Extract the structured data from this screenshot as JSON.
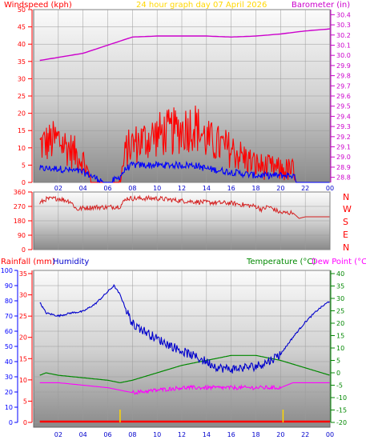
{
  "header": {
    "left_title": "Windspeed (kph)",
    "center_title": "24 hour graph day   07 April 2026",
    "right_title": "Barometer (in)"
  },
  "bottom_header": {
    "rainfall_label": "Rainfall (mm)",
    "humidity_label": "Humidity",
    "temperature_label": "Temperature (°C)",
    "dewpoint_label": "Dew Point (°C)"
  },
  "colors": {
    "windspeed": "#ff0000",
    "wind_avg": "#0000ff",
    "barometer": "#cc00cc",
    "wind_direction": "#d42020",
    "humidity": "#0000cc",
    "temperature": "#008800",
    "dewpoint": "#ff00ff",
    "rainfall": "#ff0000",
    "marker": "#ffd700",
    "axis_red": "#ff0000",
    "axis_blue": "#0000ff",
    "axis_magenta": "#cc00cc",
    "axis_green": "#008800"
  },
  "chart_data": [
    {
      "type": "line",
      "title": "24 hour graph day   07 April 2026",
      "x_ticks": [
        "02",
        "04",
        "06",
        "08",
        "10",
        "12",
        "14",
        "16",
        "18",
        "20",
        "22",
        "00"
      ],
      "left_axis": {
        "label": "Windspeed (kph)",
        "ticks": [
          0,
          5,
          10,
          15,
          20,
          25,
          30,
          35,
          40,
          45,
          50
        ],
        "ylim": [
          0,
          50
        ]
      },
      "right_axis": {
        "label": "Barometer (in)",
        "ticks": [
          28.8,
          28.9,
          29.0,
          29.1,
          29.2,
          29.3,
          29.4,
          29.5,
          29.6,
          29.7,
          29.8,
          29.9,
          30.0,
          30.1,
          30.2,
          30.3,
          30.4
        ],
        "ylim": [
          28.75,
          30.45
        ]
      },
      "series": [
        {
          "name": "Windspeed (kph)",
          "x": [
            0.5,
            2,
            4,
            5.2,
            6,
            6.8,
            7.5,
            8,
            10,
            12,
            13,
            14,
            16,
            18,
            20,
            21,
            21.4,
            22,
            24
          ],
          "values": [
            13,
            14,
            10,
            2,
            0,
            3,
            12,
            13,
            15,
            16,
            17,
            14,
            12,
            9,
            8,
            8,
            2,
            0,
            0
          ]
        },
        {
          "x": [
            0.5,
            2,
            4,
            5.2,
            6,
            6.8,
            7.5,
            8,
            10,
            12,
            13,
            14,
            16,
            18,
            20,
            21,
            21.4,
            22,
            24
          ],
          "values": [
            4,
            4,
            3,
            1,
            0,
            1,
            4,
            5,
            5,
            5,
            5,
            4,
            3,
            2,
            2,
            2,
            0,
            0,
            0
          ]
        },
        {
          "name": "Barometer (in)",
          "x": [
            0.5,
            2,
            4,
            5,
            6,
            7,
            8,
            10,
            12,
            14,
            16,
            18,
            20,
            22,
            24
          ],
          "values": [
            29.95,
            29.98,
            30.02,
            30.06,
            30.1,
            30.14,
            30.18,
            30.19,
            30.19,
            30.19,
            30.18,
            30.19,
            30.21,
            30.24,
            30.26
          ]
        }
      ]
    },
    {
      "type": "line",
      "left_ticks": [
        0,
        90,
        180,
        270,
        360
      ],
      "right_ticks": [
        "N",
        "W",
        "S",
        "E",
        "N"
      ],
      "ylim": [
        0,
        360
      ],
      "x": [
        0.5,
        1,
        2,
        3,
        3.5,
        4,
        5,
        6,
        7,
        7.5,
        8,
        10,
        12,
        14,
        16,
        17,
        18,
        18.5,
        19,
        20,
        21,
        21.5,
        22,
        24
      ],
      "values": [
        290,
        315,
        320,
        300,
        250,
        260,
        265,
        265,
        270,
        320,
        320,
        320,
        305,
        295,
        290,
        280,
        270,
        250,
        270,
        230,
        230,
        195,
        205,
        205
      ]
    },
    {
      "type": "line",
      "axis_rainfall_ticks": [
        0,
        5,
        10,
        15,
        20,
        25,
        30,
        35
      ],
      "axis_humidity_ticks": [
        0,
        10,
        20,
        30,
        40,
        50,
        60,
        70,
        80,
        90,
        100
      ],
      "axis_temperature_ticks": [
        -20,
        -15,
        -10,
        -5,
        0,
        5,
        10,
        15,
        20,
        25,
        30,
        35,
        40
      ],
      "series": [
        {
          "name": "Humidity",
          "x": [
            0.5,
            1,
            2,
            3,
            4,
            5,
            6,
            6.5,
            7,
            7.5,
            8,
            10,
            12,
            14,
            15,
            16,
            17,
            18,
            19,
            20,
            21,
            22,
            23,
            24
          ],
          "values": [
            79,
            72,
            70,
            72,
            73,
            78,
            86,
            90,
            84,
            74,
            65,
            55,
            47,
            40,
            36,
            35,
            36,
            37,
            40,
            45,
            56,
            66,
            74,
            80
          ]
        },
        {
          "name": "Temperature (°C)",
          "x": [
            0.5,
            1,
            2,
            4,
            6,
            7,
            8,
            10,
            12,
            14,
            16,
            18,
            20,
            22,
            24
          ],
          "values": [
            -1,
            0,
            -1,
            -2,
            -3,
            -4,
            -3,
            0,
            3,
            5,
            7,
            7,
            5,
            2,
            -1
          ]
        },
        {
          "name": "Dew Point (°C)",
          "x": [
            0.5,
            1,
            2,
            4,
            6,
            7,
            8,
            10,
            12,
            14,
            16,
            18,
            20,
            21,
            22,
            24
          ],
          "values": [
            -4,
            -4,
            -4,
            -5,
            -6,
            -7,
            -8,
            -7,
            -6,
            -6,
            -6,
            -6,
            -6,
            -4,
            -4,
            -4
          ]
        },
        {
          "name": "Rainfall (mm)",
          "x": [
            0.5,
            24
          ],
          "values": [
            0,
            0
          ]
        }
      ],
      "markers_x": [
        7,
        20.2
      ]
    }
  ]
}
